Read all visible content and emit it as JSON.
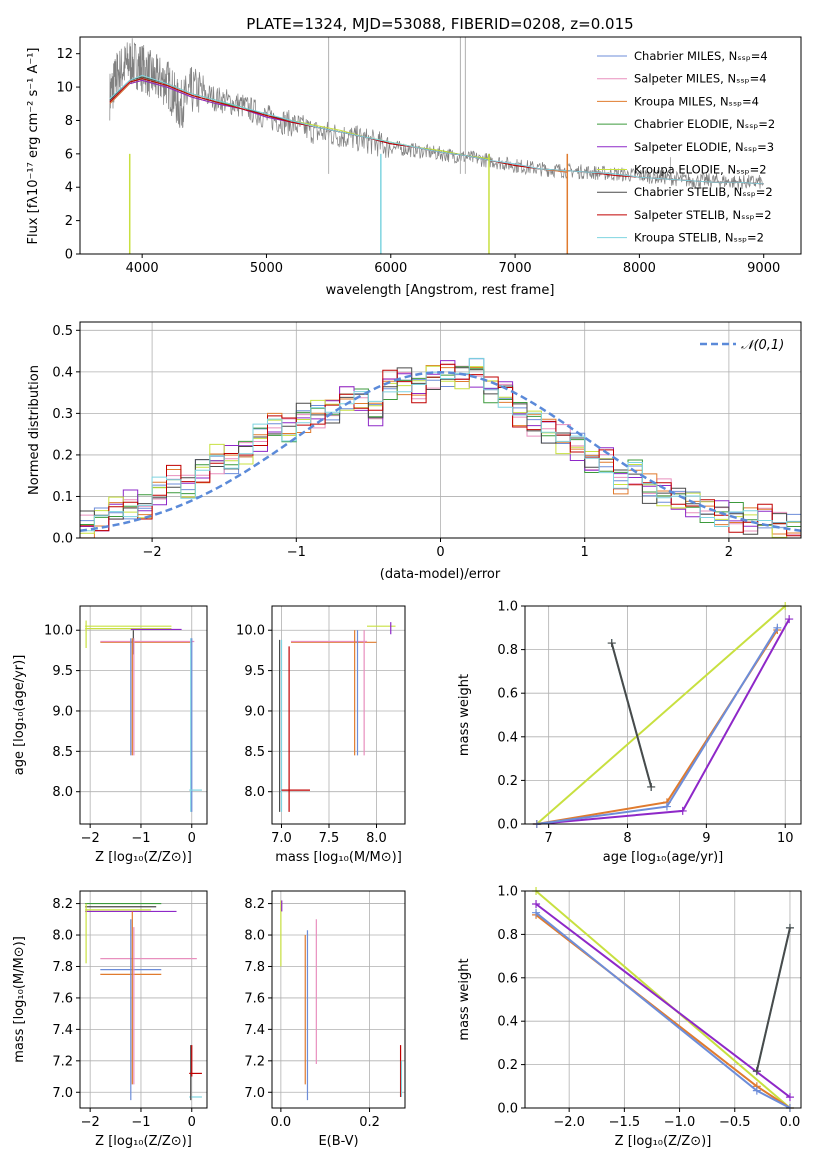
{
  "chart_data": [
    {
      "type": "line",
      "title": "PLATE=1324, MJD=53088, FIBERID=0208, z=0.015",
      "xlabel": "wavelength [Angstrom, rest frame]",
      "ylabel": "Flux [fλ10⁻¹⁷ erg cm⁻² s⁻¹ A⁻¹]",
      "xlim": [
        3500,
        9300
      ],
      "ylim": [
        0,
        13
      ],
      "xticks": [
        "4000",
        "5000",
        "6000",
        "7000",
        "8000",
        "9000"
      ],
      "yticks": [
        "0",
        "2",
        "4",
        "6",
        "8",
        "10",
        "12"
      ],
      "grid": false,
      "legend_position": "top-right",
      "data_spectrum": {
        "x": [
          3740,
          3800,
          3900,
          4000,
          4100,
          4200,
          4300,
          4400,
          4600,
          4800,
          5000,
          5200,
          5400,
          5600,
          5800,
          6000,
          6200,
          6400,
          6600,
          6800,
          7000,
          7200,
          7400,
          7600,
          7800,
          8000,
          8200,
          8400,
          8600,
          8800,
          9000
        ],
        "y": [
          9.5,
          10.8,
          11.5,
          11.2,
          10.5,
          10.3,
          8.8,
          9.8,
          9.3,
          8.9,
          8.2,
          7.8,
          7.3,
          7.1,
          6.8,
          6.4,
          6.2,
          6.0,
          5.8,
          5.6,
          5.3,
          5.1,
          5.0,
          4.9,
          4.8,
          4.7,
          4.6,
          4.4,
          4.4,
          4.3,
          4.3
        ]
      },
      "series": [
        {
          "name": "Chabrier MILES, Nₛₛₚ=4",
          "color": "#6d8dd9",
          "x": [
            3740,
            3900,
            4000,
            4200,
            4400,
            4600,
            4800,
            5000,
            5200,
            5400,
            5600,
            5800,
            6000,
            6200,
            6400,
            6600,
            6800,
            7000,
            7200,
            7420
          ],
          "y": [
            9.0,
            10.2,
            10.4,
            10.0,
            9.4,
            9.0,
            8.7,
            8.2,
            7.9,
            7.6,
            7.3,
            7.0,
            6.6,
            6.4,
            6.1,
            5.9,
            5.6,
            5.3,
            5.1,
            4.9
          ]
        },
        {
          "name": "Salpeter MILES, Nₛₛₚ=4",
          "color": "#e88fbe",
          "x": [
            3740,
            3900,
            4000,
            4200,
            4400,
            4600,
            4800,
            5000,
            5200,
            5400,
            5600,
            5800,
            6000,
            6200,
            6400,
            6600,
            6800,
            7000,
            7200,
            7420
          ],
          "y": [
            9.1,
            10.3,
            10.5,
            10.1,
            9.5,
            9.1,
            8.7,
            8.3,
            7.9,
            7.6,
            7.3,
            7.0,
            6.6,
            6.4,
            6.1,
            5.9,
            5.6,
            5.4,
            5.1,
            4.9
          ]
        },
        {
          "name": "Kroupa MILES, Nₛₛₚ=4",
          "color": "#e07b2e",
          "x": [
            3740,
            3900,
            4000,
            4200,
            4400,
            4600,
            4800,
            5000,
            5200,
            5400,
            5600,
            5800,
            6000,
            6200,
            6400,
            6600,
            6800,
            7000,
            7200,
            7420
          ],
          "y": [
            9.0,
            10.2,
            10.4,
            10.0,
            9.4,
            9.0,
            8.7,
            8.2,
            7.9,
            7.6,
            7.3,
            7.0,
            6.6,
            6.4,
            6.1,
            5.9,
            5.6,
            5.3,
            5.1,
            4.9
          ]
        },
        {
          "name": "Chabrier ELODIE, Nₛₛₚ=2",
          "color": "#3c9a3c",
          "x": [
            3900,
            4000,
            4200,
            4400,
            4600,
            4800,
            5000,
            5200,
            5400,
            5600,
            5800,
            6000,
            6200,
            6400,
            6600,
            6800
          ],
          "y": [
            10.3,
            10.5,
            10.1,
            9.5,
            9.1,
            8.8,
            8.3,
            7.9,
            7.6,
            7.3,
            7.0,
            6.7,
            6.4,
            6.2,
            5.9,
            5.7
          ]
        },
        {
          "name": "Salpeter ELODIE, Nₛₛₚ=3",
          "color": "#8e28c8",
          "x": [
            3900,
            4000,
            4200,
            4400,
            4600,
            4800,
            5000,
            5200,
            5400,
            5600,
            5800,
            6000,
            6200,
            6400,
            6600,
            6800
          ],
          "y": [
            10.2,
            10.4,
            10.0,
            9.4,
            9.0,
            8.7,
            8.2,
            7.9,
            7.6,
            7.3,
            7.0,
            6.6,
            6.4,
            6.1,
            5.9,
            5.6
          ]
        },
        {
          "name": "Kroupa ELODIE, Nₛₛₚ=2",
          "color": "#c8e040",
          "x": [
            3900,
            4000,
            4200,
            4400,
            4600,
            4800,
            5000,
            5200,
            5400,
            5600,
            5800,
            6000,
            6200,
            6400,
            6600,
            6800
          ],
          "y": [
            10.4,
            10.6,
            10.2,
            9.6,
            9.2,
            8.8,
            8.3,
            8.0,
            7.7,
            7.4,
            7.0,
            6.7,
            6.4,
            6.2,
            5.9,
            5.7
          ]
        },
        {
          "name": "Chabrier STELIB, Nₛₛₚ=2",
          "color": "#4a4a4a",
          "x": [
            3740,
            3900,
            4000,
            4200,
            4400,
            4600,
            4800,
            5000,
            5200,
            5400,
            5600,
            5800,
            6000,
            6200,
            6400,
            6600,
            6800,
            7000,
            7200,
            7400,
            7600,
            7800,
            8000,
            8200,
            8400,
            8600,
            8800,
            9000
          ],
          "y": [
            9.2,
            10.4,
            10.6,
            10.2,
            9.6,
            9.2,
            8.8,
            8.3,
            8.0,
            7.6,
            7.3,
            7.0,
            6.6,
            6.4,
            6.1,
            5.9,
            5.6,
            5.3,
            5.1,
            5.0,
            4.9,
            4.8,
            4.6,
            4.5,
            4.4,
            4.3,
            4.3,
            4.2
          ]
        },
        {
          "name": "Salpeter STELIB, Nₛₛₚ=2",
          "color": "#c00000",
          "x": [
            3740,
            3900,
            4000,
            4200,
            4400,
            4600,
            4800,
            5000,
            5200,
            5400,
            5600,
            5800,
            6000,
            6200,
            6400,
            6600,
            6800,
            7000,
            7200,
            7400,
            7600,
            7800,
            8000,
            8200,
            8400,
            8600,
            8800,
            9000
          ],
          "y": [
            9.1,
            10.3,
            10.5,
            10.1,
            9.5,
            9.1,
            8.7,
            8.3,
            7.9,
            7.6,
            7.3,
            7.0,
            6.6,
            6.4,
            6.1,
            5.9,
            5.6,
            5.3,
            5.1,
            5.0,
            4.9,
            4.7,
            4.6,
            4.5,
            4.4,
            4.3,
            4.3,
            4.2
          ]
        },
        {
          "name": "Kroupa STELIB, Nₛₛₚ=2",
          "color": "#7fd4e0",
          "x": [
            3740,
            3900,
            4000,
            4200,
            4400,
            4600,
            4800,
            5000,
            5200,
            5400,
            5600,
            5800,
            6000,
            6200,
            6400,
            6600,
            6800,
            7000,
            7200,
            7400,
            7600,
            7800,
            8000,
            8200,
            8400,
            8600,
            8800,
            9000
          ],
          "y": [
            9.3,
            10.4,
            10.7,
            10.2,
            9.6,
            9.2,
            8.8,
            8.4,
            8.0,
            7.6,
            7.3,
            7.0,
            6.7,
            6.4,
            6.1,
            5.9,
            5.6,
            5.4,
            5.1,
            5.0,
            4.9,
            4.8,
            4.6,
            4.5,
            4.4,
            4.3,
            4.3,
            4.2
          ]
        }
      ]
    },
    {
      "type": "line",
      "xlabel": "(data-model)/error",
      "ylabel": "Normed distribution",
      "xlim": [
        -2.5,
        2.5
      ],
      "ylim": [
        0,
        0.52
      ],
      "xticks": [
        "−2",
        "−1",
        "0",
        "1",
        "2"
      ],
      "xtick_values": [
        -2,
        -1,
        0,
        1,
        2
      ],
      "yticks": [
        "0.0",
        "0.1",
        "0.2",
        "0.3",
        "0.4",
        "0.5"
      ],
      "ytick_values": [
        0,
        0.1,
        0.2,
        0.3,
        0.4,
        0.5
      ],
      "grid": true,
      "legend_position": "top-right",
      "legend": "𝒩(0,1)",
      "gaussian_color": "#5b8ad9",
      "bin_edges": [
        -2.5,
        -2.4,
        -2.3,
        -2.2,
        -2.1,
        -2.0,
        -1.9,
        -1.8,
        -1.7,
        -1.6,
        -1.5,
        -1.4,
        -1.3,
        -1.2,
        -1.1,
        -1.0,
        -0.9,
        -0.8,
        -0.7,
        -0.6,
        -0.5,
        -0.4,
        -0.3,
        -0.2,
        -0.1,
        0.0,
        0.1,
        0.2,
        0.3,
        0.4,
        0.5,
        0.6,
        0.7,
        0.8,
        0.9,
        1.0,
        1.1,
        1.2,
        1.3,
        1.4,
        1.5,
        1.6,
        1.7,
        1.8,
        1.9,
        2.0,
        2.1,
        2.2,
        2.3,
        2.4,
        2.5
      ],
      "hist_base": [
        0.03,
        0.04,
        0.07,
        0.08,
        0.07,
        0.11,
        0.14,
        0.12,
        0.16,
        0.19,
        0.19,
        0.21,
        0.24,
        0.27,
        0.26,
        0.29,
        0.3,
        0.31,
        0.34,
        0.33,
        0.3,
        0.37,
        0.38,
        0.36,
        0.39,
        0.4,
        0.39,
        0.4,
        0.36,
        0.35,
        0.3,
        0.28,
        0.26,
        0.24,
        0.22,
        0.18,
        0.19,
        0.14,
        0.16,
        0.12,
        0.11,
        0.09,
        0.08,
        0.07,
        0.06,
        0.05,
        0.04,
        0.05,
        0.03,
        0.02
      ],
      "hist_colors": [
        "#6d8dd9",
        "#e88fbe",
        "#e07b2e",
        "#3c9a3c",
        "#8e28c8",
        "#c8e040",
        "#4a4a4a",
        "#c00000",
        "#7fd4e0"
      ]
    },
    {
      "type": "scatter",
      "xlabel": "Z [log₁₀(Z/Z⊙)]",
      "ylabel": "age  [log₁₀(age/yr)]",
      "xlim": [
        -2.2,
        0.3
      ],
      "ylim": [
        7.6,
        10.3
      ],
      "xticks": [
        "−2",
        "−1",
        "0"
      ],
      "xtick_values": [
        -2,
        -1,
        0
      ],
      "yticks": [
        "8.0",
        "8.5",
        "9.0",
        "9.5",
        "10.0"
      ],
      "ytick_values": [
        8.0,
        8.5,
        9.0,
        9.5,
        10.0
      ],
      "grid": true
    },
    {
      "type": "scatter",
      "xlabel": "mass [log₁₀(M/M⊙)]",
      "xlim": [
        6.9,
        8.3
      ],
      "ylim": [
        7.6,
        10.3
      ],
      "xticks": [
        "7.0",
        "7.5",
        "8.0"
      ],
      "xtick_values": [
        7.0,
        7.5,
        8.0
      ],
      "yticks": [
        "8.0",
        "8.5",
        "9.0",
        "9.5",
        "10.0"
      ],
      "ytick_values": [
        8.0,
        8.5,
        9.0,
        9.5,
        10.0
      ],
      "grid": true
    },
    {
      "type": "line",
      "xlabel": "age  [log₁₀(age/yr)]",
      "ylabel": "mass weight",
      "xlim": [
        6.7,
        10.2
      ],
      "ylim": [
        0.0,
        1.0
      ],
      "xticks": [
        "7",
        "8",
        "9",
        "10"
      ],
      "xtick_values": [
        7,
        8,
        9,
        10
      ],
      "yticks": [
        "0.0",
        "0.2",
        "0.4",
        "0.6",
        "0.8",
        "1.0"
      ],
      "ytick_values": [
        0,
        0.2,
        0.4,
        0.6,
        0.8,
        1.0
      ],
      "grid": true,
      "series": [
        {
          "color": "#c8e040",
          "x": [
            6.85,
            10.0
          ],
          "y": [
            0.0,
            1.0
          ]
        },
        {
          "color": "#8e28c8",
          "x": [
            6.85,
            8.7,
            10.05
          ],
          "y": [
            0.0,
            0.06,
            0.94
          ]
        },
        {
          "color": "#e07b2e",
          "x": [
            6.85,
            8.5,
            9.9
          ],
          "y": [
            0.0,
            0.1,
            0.89
          ]
        },
        {
          "color": "#6d8dd9",
          "x": [
            6.85,
            8.5,
            9.9
          ],
          "y": [
            0.0,
            0.08,
            0.9
          ]
        },
        {
          "color": "#7fd4e0",
          "x": [
            7.8,
            8.3
          ],
          "y": [
            0.83,
            0.17
          ]
        },
        {
          "color": "#4a4a4a",
          "x": [
            7.8,
            8.3
          ],
          "y": [
            0.83,
            0.17
          ]
        }
      ]
    },
    {
      "type": "scatter",
      "xlabel": "Z [log₁₀(Z/Z⊙)]",
      "ylabel": "mass [log₁₀(M/M⊙)]",
      "xlim": [
        -2.2,
        0.3
      ],
      "ylim": [
        6.9,
        8.28
      ],
      "xticks": [
        "−2",
        "−1",
        "0"
      ],
      "xtick_values": [
        -2,
        -1,
        0
      ],
      "yticks": [
        "7.0",
        "7.2",
        "7.4",
        "7.6",
        "7.8",
        "8.0",
        "8.2"
      ],
      "ytick_values": [
        7.0,
        7.2,
        7.4,
        7.6,
        7.8,
        8.0,
        8.2
      ],
      "grid": true
    },
    {
      "type": "scatter",
      "xlabel": "E(B-V)",
      "xlim": [
        -0.02,
        0.28
      ],
      "ylim": [
        6.9,
        8.28
      ],
      "xticks": [
        "0.0",
        "0.2"
      ],
      "xtick_values": [
        0.0,
        0.2
      ],
      "yticks": [
        "7.0",
        "7.2",
        "7.4",
        "7.6",
        "7.8",
        "8.0",
        "8.2"
      ],
      "ytick_values": [
        7.0,
        7.2,
        7.4,
        7.6,
        7.8,
        8.0,
        8.2
      ],
      "grid": true
    },
    {
      "type": "line",
      "xlabel": "Z [log₁₀(Z/Z⊙)]",
      "ylabel": "mass weight",
      "xlim": [
        -2.4,
        0.1
      ],
      "ylim": [
        0.0,
        1.0
      ],
      "xticks": [
        "−2.0",
        "−1.5",
        "−1.0",
        "−0.5",
        "0.0"
      ],
      "xtick_values": [
        -2.0,
        -1.5,
        -1.0,
        -0.5,
        0.0
      ],
      "yticks": [
        "0.0",
        "0.2",
        "0.4",
        "0.6",
        "0.8",
        "1.0"
      ],
      "ytick_values": [
        0,
        0.2,
        0.4,
        0.6,
        0.8,
        1.0
      ],
      "grid": true,
      "series": [
        {
          "color": "#c8e040",
          "x": [
            -2.3,
            0.0
          ],
          "y": [
            1.0,
            0.0
          ]
        },
        {
          "color": "#8e28c8",
          "x": [
            -2.3,
            0.0
          ],
          "y": [
            0.94,
            0.05
          ]
        },
        {
          "color": "#e07b2e",
          "x": [
            -2.3,
            -0.3,
            0.0
          ],
          "y": [
            0.89,
            0.1,
            0.0
          ]
        },
        {
          "color": "#6d8dd9",
          "x": [
            -2.3,
            -0.3,
            0.0
          ],
          "y": [
            0.9,
            0.08,
            0.0
          ]
        },
        {
          "color": "#7fd4e0",
          "x": [
            -0.3,
            0.0
          ],
          "y": [
            0.17,
            0.83
          ]
        },
        {
          "color": "#4a4a4a",
          "x": [
            -0.3,
            0.0
          ],
          "y": [
            0.17,
            0.83
          ]
        }
      ]
    }
  ]
}
